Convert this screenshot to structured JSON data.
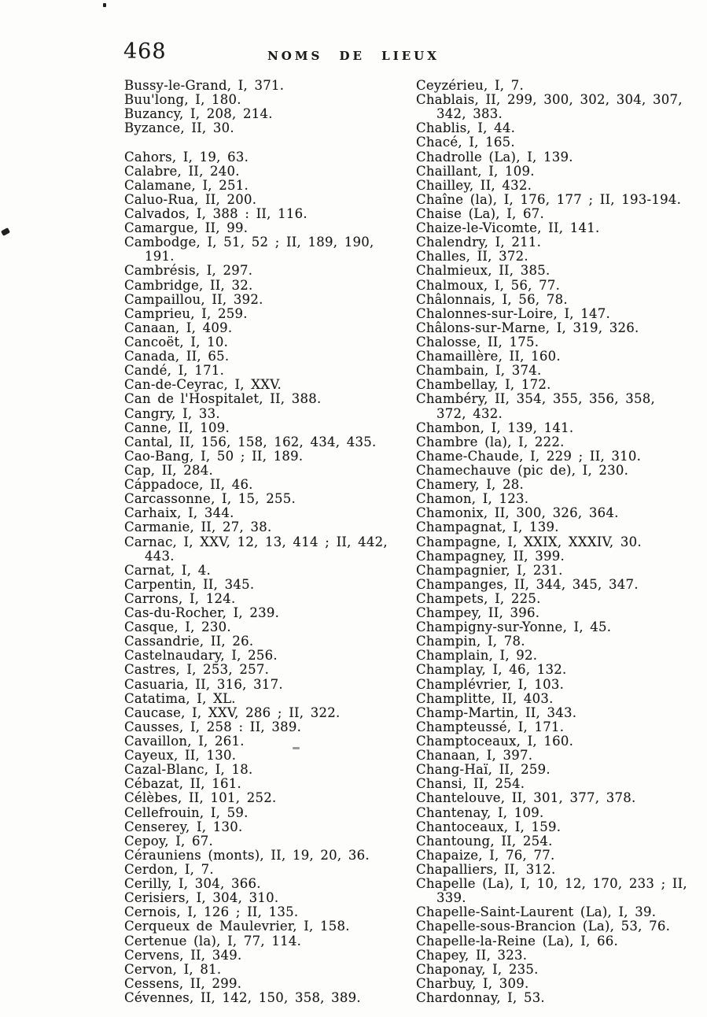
{
  "page": {
    "number": "468",
    "header": "NOMS DE LIEUX"
  },
  "columns": {
    "left": [
      {
        "type": "entry",
        "text": "Bussy-le-Grand, I, 371."
      },
      {
        "type": "entry",
        "text": "Buu'long, I, 180."
      },
      {
        "type": "entry",
        "text": "Buzancy, I, 208, 214."
      },
      {
        "type": "entry",
        "text": "Byzance, II, 30."
      },
      {
        "type": "gap"
      },
      {
        "type": "entry",
        "text": "Cahors, I, 19, 63."
      },
      {
        "type": "entry",
        "text": "Calabre, II, 240."
      },
      {
        "type": "entry",
        "text": "Calamane, I, 251."
      },
      {
        "type": "entry",
        "text": "Caluo-Rua, II, 200."
      },
      {
        "type": "entry",
        "text": "Calvados, I, 388 : II, 116."
      },
      {
        "type": "entry",
        "text": "Camargue, II, 99."
      },
      {
        "type": "entry",
        "text": "Cambodge, I, 51, 52 ; II, 189, 190,"
      },
      {
        "type": "continuation",
        "text": "191."
      },
      {
        "type": "entry",
        "text": "Cambrésis, I, 297."
      },
      {
        "type": "entry",
        "text": "Cambridge, II, 32."
      },
      {
        "type": "entry",
        "text": "Campaillou, II, 392."
      },
      {
        "type": "entry",
        "text": "Camprieu, I, 259."
      },
      {
        "type": "entry",
        "text": "Canaan, I, 409."
      },
      {
        "type": "entry",
        "text": "Cancoët, I, 10."
      },
      {
        "type": "entry",
        "text": "Canada, II, 65."
      },
      {
        "type": "entry",
        "text": "Candé, I, 171."
      },
      {
        "type": "entry",
        "text": "Can-de-Ceyrac, I, XXV."
      },
      {
        "type": "entry",
        "text": "Can de l'Hospitalet, II, 388."
      },
      {
        "type": "entry",
        "text": "Cangry, I, 33."
      },
      {
        "type": "entry",
        "text": "Canne, II, 109."
      },
      {
        "type": "entry",
        "text": "Cantal, II, 156, 158, 162, 434, 435."
      },
      {
        "type": "entry",
        "text": "Cao-Bang, I, 50 ; II, 189."
      },
      {
        "type": "entry",
        "text": "Cap, II, 284."
      },
      {
        "type": "entry",
        "text": "Cáppadoce, II, 46."
      },
      {
        "type": "entry",
        "text": "Carcassonne, I, 15, 255."
      },
      {
        "type": "entry",
        "text": "Carhaix, I, 344."
      },
      {
        "type": "entry",
        "text": "Carmanie, II, 27, 38."
      },
      {
        "type": "entry",
        "text": "Carnac, I, XXV, 12, 13, 414 ; II, 442,"
      },
      {
        "type": "continuation",
        "text": "443."
      },
      {
        "type": "entry",
        "text": "Carnat, I, 4."
      },
      {
        "type": "entry",
        "text": "Carpentin, II, 345."
      },
      {
        "type": "entry",
        "text": "Carrons, I, 124."
      },
      {
        "type": "entry",
        "text": "Cas-du-Rocher, I, 239."
      },
      {
        "type": "entry",
        "text": "Casque, I, 230."
      },
      {
        "type": "entry",
        "text": "Cassandrie, II, 26."
      },
      {
        "type": "entry",
        "text": "Castelnaudary, I, 256."
      },
      {
        "type": "entry",
        "text": "Castres, I, 253, 257."
      },
      {
        "type": "entry",
        "text": "Casuaria, II, 316, 317."
      },
      {
        "type": "entry",
        "text": "Catatima, I, XL."
      },
      {
        "type": "entry",
        "text": "Caucase, I, XXV, 286 ; II, 322."
      },
      {
        "type": "entry",
        "text": "Causses, I, 258 : II, 389."
      },
      {
        "type": "entry",
        "text": "Cavaillon, I, 261."
      },
      {
        "type": "entry",
        "text": "Cayeux, II, 130."
      },
      {
        "type": "entry",
        "text": "Cazal-Blanc, I, 18."
      },
      {
        "type": "entry",
        "text": "Cébazat, II, 161."
      },
      {
        "type": "entry",
        "text": "Célèbes, II, 101, 252."
      },
      {
        "type": "entry",
        "text": "Cellefrouin, I, 59."
      },
      {
        "type": "entry",
        "text": "Censerey, I, 130."
      },
      {
        "type": "entry",
        "text": "Cepoy, I, 67."
      },
      {
        "type": "entry",
        "text": "Cérauniens (monts), II, 19, 20, 36."
      },
      {
        "type": "entry",
        "text": "Cerdon, I, 7."
      },
      {
        "type": "entry",
        "text": "Cerilly, I, 304, 366."
      },
      {
        "type": "entry",
        "text": "Cerisiers, I, 304, 310."
      },
      {
        "type": "entry",
        "text": "Cernois, I, 126 ; II, 135."
      },
      {
        "type": "entry",
        "text": "Cerqueux de Maulevrier, I, 158."
      },
      {
        "type": "entry",
        "text": "Certenue (la), I, 77, 114."
      },
      {
        "type": "entry",
        "text": "Cervens, II, 349."
      },
      {
        "type": "entry",
        "text": "Cervon, I, 81."
      },
      {
        "type": "entry",
        "text": "Cessens, II, 299."
      },
      {
        "type": "entry",
        "text": "Cévennes, II, 142, 150, 358, 389."
      }
    ],
    "right": [
      {
        "type": "entry",
        "text": "Ceyzérieu, I, 7."
      },
      {
        "type": "entry",
        "text": "Chablais, II, 299, 300, 302, 304, 307,"
      },
      {
        "type": "continuation",
        "text": "342, 383."
      },
      {
        "type": "entry",
        "text": "Chablis, I, 44."
      },
      {
        "type": "entry",
        "text": "Chacé, I, 165."
      },
      {
        "type": "entry",
        "text": "Chadrolle (La), I, 139."
      },
      {
        "type": "entry",
        "text": "Chaillant, I, 109."
      },
      {
        "type": "entry",
        "text": "Chailley, II, 432."
      },
      {
        "type": "entry",
        "text": "Chaîne (la), I, 176, 177 ; II, 193-194."
      },
      {
        "type": "entry",
        "text": "Chaise (La), I, 67."
      },
      {
        "type": "entry",
        "text": "Chaize-le-Vicomte, II, 141."
      },
      {
        "type": "entry",
        "text": "Chalendry, I, 211."
      },
      {
        "type": "entry",
        "text": "Challes, II, 372."
      },
      {
        "type": "entry",
        "text": "Chalmieux, II, 385."
      },
      {
        "type": "entry",
        "text": "Chalmoux, I, 56, 77."
      },
      {
        "type": "entry",
        "text": "Châlonnais, I, 56, 78."
      },
      {
        "type": "entry",
        "text": "Chalonnes-sur-Loire, I, 147."
      },
      {
        "type": "entry",
        "text": "Châlons-sur-Marne, I, 319, 326."
      },
      {
        "type": "entry",
        "text": "Chalosse, II, 175."
      },
      {
        "type": "entry",
        "text": "Chamaillère, II, 160."
      },
      {
        "type": "entry",
        "text": "Chambain, I, 374."
      },
      {
        "type": "entry",
        "text": "Chambellay, I, 172."
      },
      {
        "type": "entry",
        "text": "Chambéry, II, 354, 355, 356, 358,"
      },
      {
        "type": "continuation",
        "text": "372, 432."
      },
      {
        "type": "entry",
        "text": "Chambon, I, 139, 141."
      },
      {
        "type": "entry",
        "text": "Chambre (la), I, 222."
      },
      {
        "type": "entry",
        "text": "Chame-Chaude, I, 229 ; II, 310."
      },
      {
        "type": "entry",
        "text": "Chamechauve (pic de), I, 230."
      },
      {
        "type": "entry",
        "text": "Chamery, I, 28."
      },
      {
        "type": "entry",
        "text": "Chamon, I, 123."
      },
      {
        "type": "entry",
        "text": "Chamonix, II, 300, 326, 364."
      },
      {
        "type": "entry",
        "text": "Champagnat, I, 139."
      },
      {
        "type": "entry",
        "text": "Champagne, I, XXIX, XXXIV, 30."
      },
      {
        "type": "entry",
        "text": "Champagney, II, 399."
      },
      {
        "type": "entry",
        "text": "Champagnier, I, 231."
      },
      {
        "type": "entry",
        "text": "Champanges, II, 344, 345, 347."
      },
      {
        "type": "entry",
        "text": "Champets, I, 225."
      },
      {
        "type": "entry",
        "text": "Champey, II, 396."
      },
      {
        "type": "entry",
        "text": "Champigny-sur-Yonne, I, 45."
      },
      {
        "type": "entry",
        "text": "Champin, I, 78."
      },
      {
        "type": "entry",
        "text": "Champlain, I, 92."
      },
      {
        "type": "entry",
        "text": "Champlay, I, 46, 132."
      },
      {
        "type": "entry",
        "text": "Champlévrier, I, 103."
      },
      {
        "type": "entry",
        "text": "Champlitte, II, 403."
      },
      {
        "type": "entry",
        "text": "Champ-Martin, II, 343."
      },
      {
        "type": "entry",
        "text": "Champteussé, I, 171."
      },
      {
        "type": "entry",
        "text": "Champtoceaux, I, 160."
      },
      {
        "type": "entry",
        "text": "Chanaan, I, 397."
      },
      {
        "type": "entry",
        "text": "Chang-Haï, II, 259."
      },
      {
        "type": "entry",
        "text": "Chansi, II, 254."
      },
      {
        "type": "entry",
        "text": "Chantelouve, II, 301, 377, 378."
      },
      {
        "type": "entry",
        "text": "Chantenay, I, 109."
      },
      {
        "type": "entry",
        "text": "Chantoceaux, I, 159."
      },
      {
        "type": "entry",
        "text": "Chantoung, II, 254."
      },
      {
        "type": "entry",
        "text": "Chapaize, I, 76, 77."
      },
      {
        "type": "entry",
        "text": "Chapalliers, II, 312."
      },
      {
        "type": "entry",
        "text": "Chapelle (La), I, 10, 12, 170, 233 ; II,"
      },
      {
        "type": "continuation",
        "text": "339."
      },
      {
        "type": "entry",
        "text": "Chapelle-Saint-Laurent (La), I, 39."
      },
      {
        "type": "entry",
        "text": "Chapelle-sous-Brancion (La), 53, 76."
      },
      {
        "type": "entry",
        "text": "Chapelle-la-Reine (La), I, 66."
      },
      {
        "type": "entry",
        "text": "Chapey, II, 323."
      },
      {
        "type": "entry",
        "text": "Chaponay, I, 235."
      },
      {
        "type": "entry",
        "text": "Charbuy, I, 309."
      },
      {
        "type": "entry",
        "text": "Chardonnay, I, 53."
      }
    ]
  }
}
